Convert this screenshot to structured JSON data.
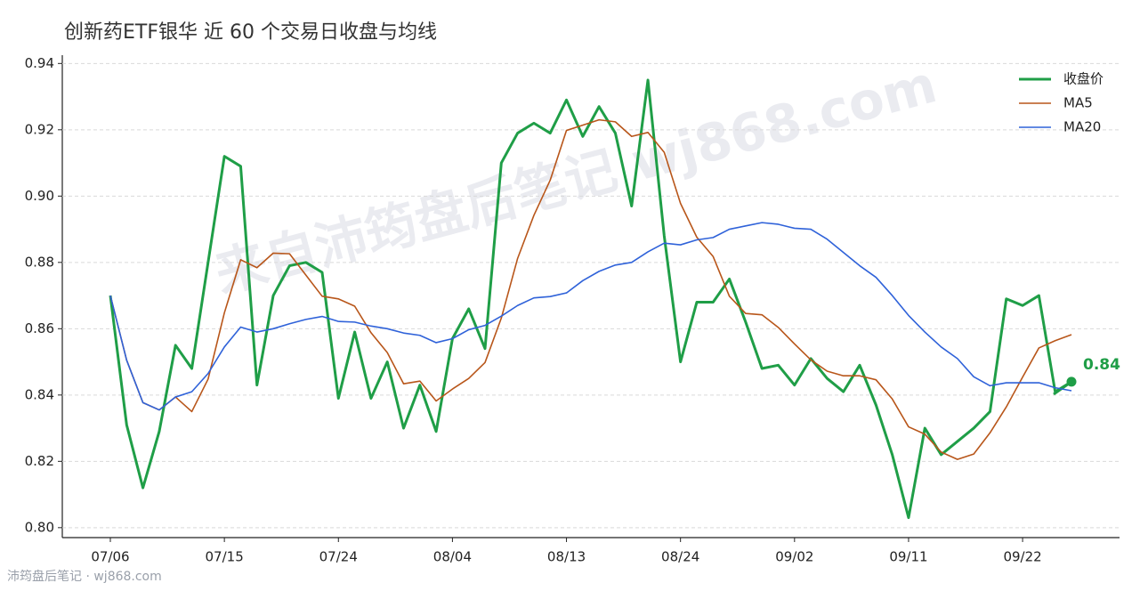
{
  "chart_data": {
    "type": "line",
    "title": "创新药ETF银华 近 60 个交易日收盘与均线",
    "watermark": "来自沛筠盘后笔记 wj868.com",
    "footer": "沛筠盘后笔记 · wj868.com",
    "categories": [
      "07/06",
      null,
      null,
      null,
      null,
      null,
      null,
      "07/15",
      null,
      null,
      null,
      null,
      null,
      null,
      "07/24",
      null,
      null,
      null,
      null,
      null,
      null,
      "08/04",
      null,
      null,
      null,
      null,
      null,
      null,
      "08/13",
      null,
      null,
      null,
      null,
      null,
      null,
      "08/24",
      null,
      null,
      null,
      null,
      null,
      null,
      "09/02",
      null,
      null,
      null,
      null,
      null,
      null,
      "09/11",
      null,
      null,
      null,
      null,
      null,
      null,
      "09/22",
      null,
      null,
      null
    ],
    "ylim": [
      0.797,
      0.9425
    ],
    "yticks": [
      {
        "value": 0.8,
        "label": "0.80"
      },
      0.82,
      0.84,
      0.86,
      0.88,
      {
        "value": 0.9,
        "label": "0.90"
      },
      0.92,
      0.94
    ],
    "grid": true,
    "legend": "upper right",
    "series": [
      {
        "name": "收盘价",
        "color": "#1f9e47",
        "width": 3,
        "values": [
          0.87,
          0.831,
          0.812,
          0.829,
          0.855,
          0.848,
          0.88,
          0.912,
          0.909,
          0.843,
          0.87,
          0.879,
          0.88,
          0.877,
          0.839,
          0.859,
          0.839,
          0.85,
          0.83,
          0.843,
          0.829,
          0.857,
          0.866,
          0.854,
          0.91,
          0.919,
          0.922,
          0.919,
          0.929,
          0.918,
          0.927,
          0.919,
          0.897,
          0.935,
          0.888,
          0.85,
          0.868,
          0.868,
          0.875,
          0.862,
          0.848,
          0.849,
          0.843,
          0.851,
          0.845,
          0.841,
          0.849,
          0.837,
          0.822,
          0.803,
          0.83,
          0.822,
          0.826,
          0.83,
          0.835,
          0.869,
          0.867,
          0.87,
          0.841,
          0.844
        ],
        "value_labels": [
          null,
          null,
          null,
          null,
          null,
          null,
          null,
          null,
          null,
          null,
          null,
          null,
          null,
          null,
          null,
          null,
          null,
          null,
          null,
          null,
          null,
          null,
          null,
          null,
          null,
          null,
          null,
          null,
          null,
          null,
          null,
          null,
          null,
          null,
          null,
          null,
          null,
          null,
          null,
          null,
          null,
          null,
          null,
          null,
          null,
          null,
          null,
          null,
          null,
          null,
          null,
          null,
          null,
          null,
          null,
          null,
          null,
          null,
          null,
          "0.84"
        ]
      },
      {
        "name": "MA5",
        "color": "#b8561a",
        "width": 1.6,
        "values": [
          0.87,
          0.8505,
          0.8377,
          0.8355,
          0.8394,
          0.835,
          0.8448,
          0.8648,
          0.8808,
          0.8784,
          0.8828,
          0.8826,
          0.8762,
          0.8698,
          0.869,
          0.8668,
          0.8588,
          0.8528,
          0.8434,
          0.8442,
          0.8382,
          0.8418,
          0.845,
          0.8498,
          0.8632,
          0.8812,
          0.8942,
          0.9048,
          0.9198,
          0.9214,
          0.923,
          0.9224,
          0.918,
          0.9192,
          0.9132,
          0.8978,
          0.8876,
          0.8818,
          0.8698,
          0.8646,
          0.8642,
          0.8604,
          0.8554,
          0.8506,
          0.8472,
          0.8458,
          0.8458,
          0.8446,
          0.8388,
          0.8304,
          0.8282,
          0.8228,
          0.8206,
          0.8222,
          0.8286,
          0.8364,
          0.8454,
          0.8542,
          0.8564,
          0.8582
        ]
      },
      {
        "name": "MA20",
        "color": "#2f62d9",
        "width": 1.6,
        "values": [
          0.87,
          0.8505,
          0.8377,
          0.8355,
          0.8394,
          0.841,
          0.8465,
          0.8545,
          0.8605,
          0.859,
          0.86,
          0.8615,
          0.8628,
          0.8637,
          0.8622,
          0.862,
          0.8608,
          0.86,
          0.8587,
          0.858,
          0.8558,
          0.857,
          0.8597,
          0.861,
          0.8638,
          0.867,
          0.8693,
          0.8697,
          0.8708,
          0.8745,
          0.8773,
          0.8792,
          0.88,
          0.8832,
          0.8858,
          0.8853,
          0.8868,
          0.8875,
          0.89,
          0.891,
          0.892,
          0.8915,
          0.8903,
          0.89,
          0.887,
          0.883,
          0.879,
          0.8755,
          0.87,
          0.864,
          0.859,
          0.8545,
          0.851,
          0.8455,
          0.8428,
          0.8437,
          0.8437,
          0.8437,
          0.8422,
          0.8413
        ]
      }
    ]
  }
}
